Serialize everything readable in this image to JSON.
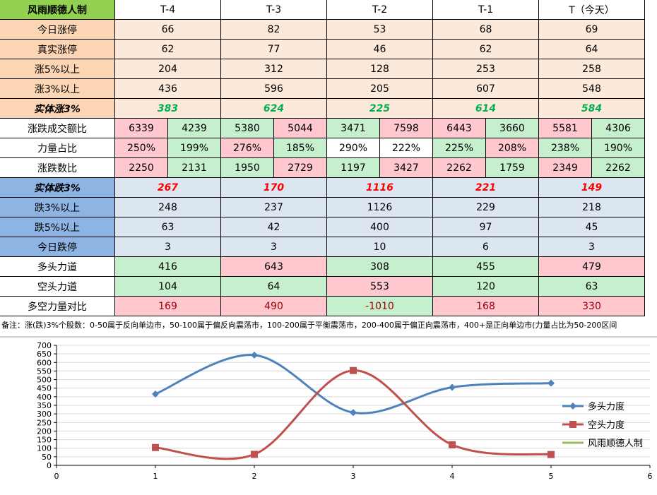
{
  "table": {
    "header": [
      "风雨顺德人制",
      "T-4",
      "T-3",
      "T-2",
      "T-1",
      "T（今天）"
    ],
    "rows": [
      {
        "label": "今日涨停",
        "label_color": "#fcd5b4",
        "cells": [
          66,
          82,
          53,
          68,
          69
        ],
        "colors": [
          "#fde9d9",
          "#fde9d9",
          "#fde9d9",
          "#fde9d9",
          "#fde9d9"
        ]
      },
      {
        "label": "真实涨停",
        "label_color": "#fcd5b4",
        "cells": [
          62,
          77,
          46,
          62,
          64
        ],
        "colors": [
          "#fde9d9",
          "#fde9d9",
          "#fde9d9",
          "#fde9d9",
          "#fde9d9"
        ]
      },
      {
        "label": "涨5%以上",
        "label_color": "#fcd5b4",
        "cells": [
          204,
          312,
          128,
          253,
          258
        ],
        "colors": [
          "#fde9d9",
          "#fde9d9",
          "#fde9d9",
          "#fde9d9",
          "#fde9d9"
        ]
      },
      {
        "label": "涨3%以上",
        "label_color": "#fcd5b4",
        "cells": [
          436,
          596,
          205,
          607,
          548
        ],
        "colors": [
          "#fde9d9",
          "#fde9d9",
          "#fde9d9",
          "#fde9d9",
          "#fde9d9"
        ]
      },
      {
        "label": "实体涨3%",
        "label_color": "#fcd5b4",
        "text_color": "#00b050",
        "cells": [
          383,
          624,
          225,
          614,
          584
        ],
        "colors": [
          "#fde9d9",
          "#fde9d9",
          "#fde9d9",
          "#fde9d9",
          "#fde9d9"
        ]
      },
      {
        "label": "涨跌成交额比",
        "label_color": "#ffffff",
        "cells": [
          [
            6339,
            4239
          ],
          [
            5380,
            5044
          ],
          [
            3471,
            7598
          ],
          [
            6443,
            3660
          ],
          [
            5581,
            4306
          ]
        ],
        "colors": [
          [
            "#ffc7ce",
            "#c6efce"
          ],
          [
            "#c6efce",
            "#ffc7ce"
          ],
          [
            "#c6efce",
            "#ffc7ce"
          ],
          [
            "#ffc7ce",
            "#c6efce"
          ],
          [
            "#ffc7ce",
            "#c6efce"
          ]
        ]
      },
      {
        "label": "力量占比",
        "label_color": "#ffffff",
        "cells": [
          [
            "250%",
            "199%"
          ],
          [
            "276%",
            "185%"
          ],
          [
            "290%",
            "222%"
          ],
          [
            "225%",
            "208%"
          ],
          [
            "238%",
            "190%"
          ]
        ],
        "colors": [
          [
            "#ffc7ce",
            "#c6efce"
          ],
          [
            "#ffc7ce",
            "#c6efce"
          ],
          [
            "#ffffff",
            "#ffffff"
          ],
          [
            "#c6efce",
            "#ffc7ce"
          ],
          [
            "#c6efce",
            "#c6efce"
          ]
        ]
      },
      {
        "label": "涨跌数比",
        "label_color": "#ffffff",
        "cells": [
          [
            2250,
            2131
          ],
          [
            1950,
            2729
          ],
          [
            1197,
            3427
          ],
          [
            2262,
            1759
          ],
          [
            2349,
            2262
          ]
        ],
        "colors": [
          [
            "#ffc7ce",
            "#c6efce"
          ],
          [
            "#c6efce",
            "#ffc7ce"
          ],
          [
            "#c6efce",
            "#ffc7ce"
          ],
          [
            "#ffc7ce",
            "#c6efce"
          ],
          [
            "#ffc7ce",
            "#c6efce"
          ]
        ]
      },
      {
        "label": "实体跌3%",
        "label_color": "#8db4e2",
        "text_color": "#ff0000",
        "cells": [
          267,
          170,
          1116,
          221,
          149
        ],
        "colors": [
          "#dce6f1",
          "#dce6f1",
          "#dce6f1",
          "#dce6f1",
          "#dce6f1"
        ]
      },
      {
        "label": "跌3%以上",
        "label_color": "#8db4e2",
        "cells": [
          248,
          237,
          1126,
          229,
          218
        ],
        "colors": [
          "#dce6f1",
          "#dce6f1",
          "#dce6f1",
          "#dce6f1",
          "#dce6f1"
        ]
      },
      {
        "label": "跌5%以上",
        "label_color": "#8db4e2",
        "cells": [
          63,
          42,
          400,
          97,
          45
        ],
        "colors": [
          "#dce6f1",
          "#dce6f1",
          "#dce6f1",
          "#dce6f1",
          "#dce6f1"
        ]
      },
      {
        "label": "今日跌停",
        "label_color": "#8db4e2",
        "cells": [
          3,
          3,
          10,
          6,
          3
        ],
        "colors": [
          "#dce6f1",
          "#dce6f1",
          "#dce6f1",
          "#dce6f1",
          "#dce6f1"
        ]
      },
      {
        "label": "多头力道",
        "label_color": "#ffffff",
        "cells": [
          416,
          643,
          308,
          455,
          479
        ],
        "colors": [
          "#c6efce",
          "#ffc7ce",
          "#c6efce",
          "#c6efce",
          "#ffc7ce"
        ]
      },
      {
        "label": "空头力道",
        "label_color": "#ffffff",
        "cells": [
          104,
          64,
          553,
          120,
          63
        ],
        "colors": [
          "#c6efce",
          "#c6efce",
          "#ffc7ce",
          "#c6efce",
          "#c6efce"
        ]
      },
      {
        "label": "多空力量对比",
        "label_color": "#ffffff",
        "cells": [
          169,
          490,
          -1010,
          168,
          330
        ],
        "colors": [
          "#ffc7ce",
          "#ffc7ce",
          "#c6efce",
          "#ffc7ce",
          "#ffc7ce"
        ]
      }
    ]
  },
  "note": "备注：涨(跌)3%个股数：0-50属于反向单边市，50-100属于偏反向震荡市，100-200属于平衡震荡市，200-400属于偏正向震荡市，400+是正向单边市(力量占比为50-200区间",
  "chart_data": {
    "type": "line",
    "x": [
      1,
      2,
      3,
      4,
      5
    ],
    "series": [
      {
        "name": "多头力度",
        "color": "#4f81bd",
        "values": [
          416,
          643,
          308,
          455,
          479
        ]
      },
      {
        "name": "空头力度",
        "color": "#c0504d",
        "values": [
          104,
          64,
          553,
          120,
          63
        ]
      },
      {
        "name": "风雨顺德人制",
        "color": "#9bbb59",
        "values": [
          null,
          null,
          null,
          null,
          null
        ]
      }
    ],
    "xlim": [
      0,
      6
    ],
    "xticks": [
      0,
      1,
      2,
      3,
      4,
      5,
      6
    ],
    "ylim": [
      0,
      700
    ],
    "yticks": [
      0,
      50,
      100,
      150,
      200,
      250,
      300,
      350,
      400,
      450,
      500,
      550,
      600,
      650,
      700
    ],
    "grid": true
  }
}
